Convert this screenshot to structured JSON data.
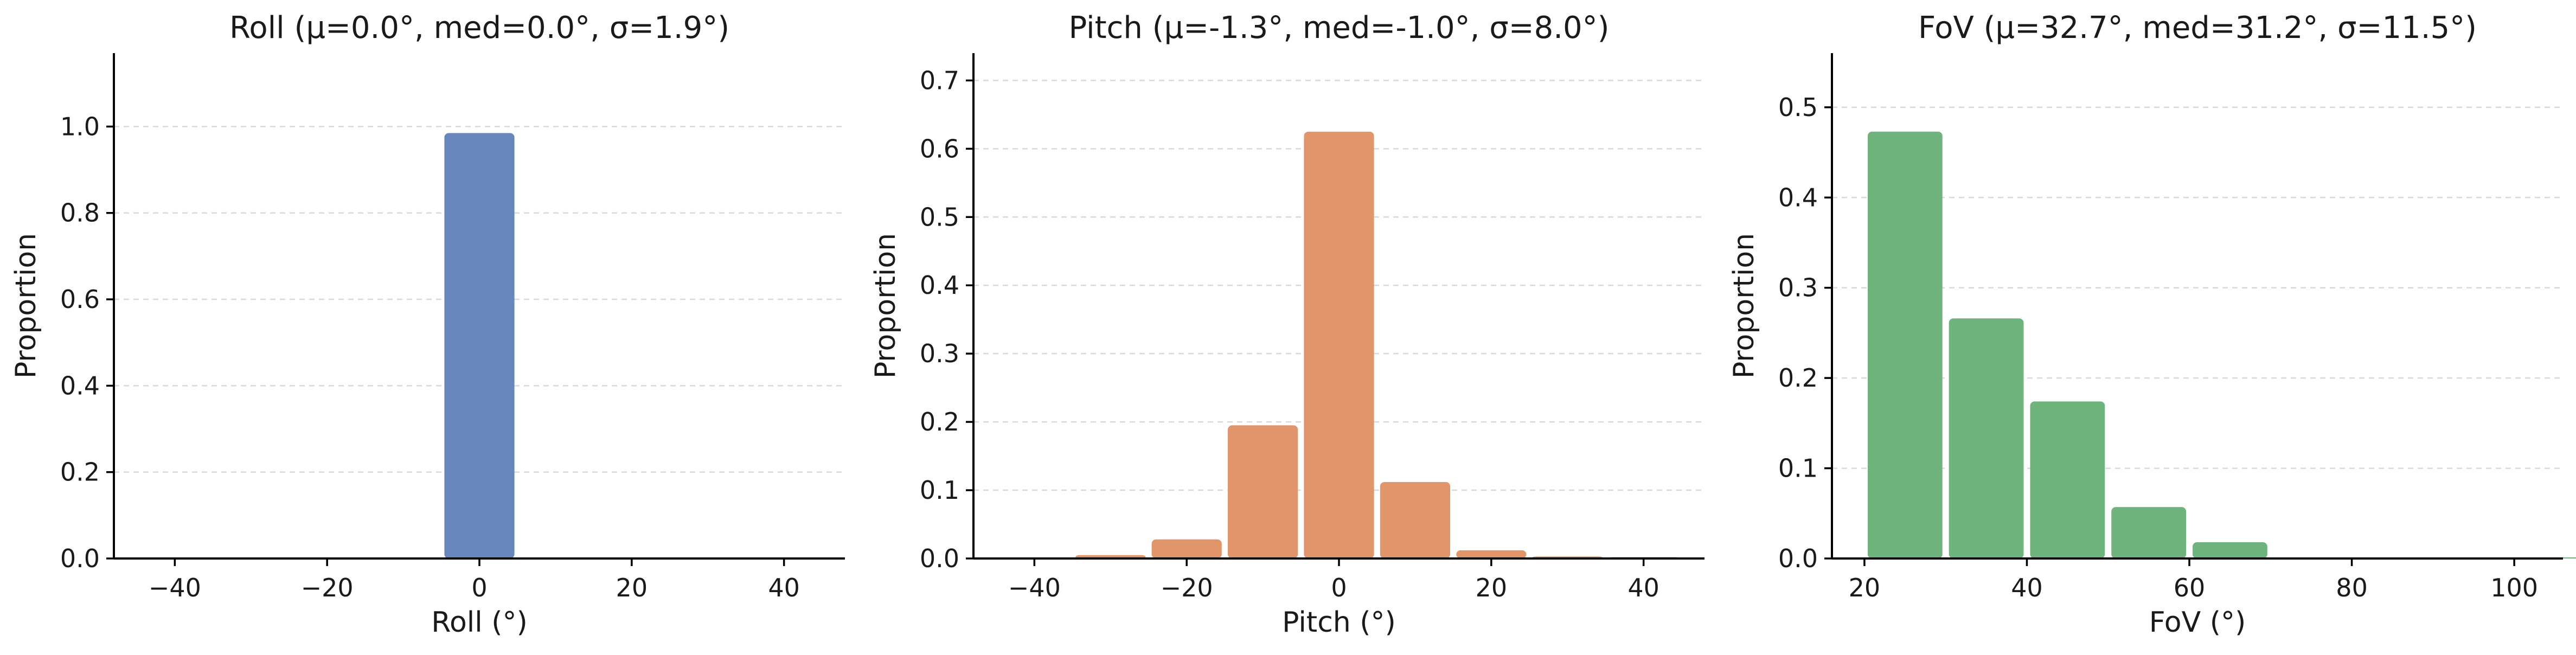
{
  "chart_data": [
    {
      "type": "bar",
      "title": "Roll  (μ=0.0°, med=0.0°, σ=1.9°)",
      "xlabel": "Roll (°)",
      "ylabel": "Proportion",
      "color": "#6787bc",
      "xlim": [
        -48,
        48
      ],
      "ylim": [
        0,
        1.17
      ],
      "xticks": [
        -40,
        -20,
        0,
        20,
        40
      ],
      "xtick_labels": [
        "−40",
        "−20",
        "0",
        "20",
        "40"
      ],
      "yticks": [
        0.0,
        0.2,
        0.4,
        0.6,
        0.8,
        1.0
      ],
      "ytick_labels": [
        "0.0",
        "0.2",
        "0.4",
        "0.6",
        "0.8",
        "1.0"
      ],
      "grid": "y",
      "bin_width": 10,
      "bins": [
        {
          "x0": -45,
          "x1": -35,
          "value": 0.001
        },
        {
          "x0": -35,
          "x1": -25,
          "value": 0.001
        },
        {
          "x0": -25,
          "x1": -15,
          "value": 0.001
        },
        {
          "x0": -15,
          "x1": -5,
          "value": 0.001
        },
        {
          "x0": -5,
          "x1": 5,
          "value": 0.985
        },
        {
          "x0": 5,
          "x1": 15,
          "value": 0.001
        },
        {
          "x0": 15,
          "x1": 25,
          "value": 0.001
        },
        {
          "x0": 25,
          "x1": 35,
          "value": 0.001
        },
        {
          "x0": 35,
          "x1": 45,
          "value": 0.001
        }
      ]
    },
    {
      "type": "bar",
      "title": "Pitch  (μ=-1.3°, med=-1.0°, σ=8.0°)",
      "xlabel": "Pitch (°)",
      "ylabel": "Proportion",
      "color": "#e1956b",
      "xlim": [
        -48,
        48
      ],
      "ylim": [
        0,
        0.74
      ],
      "xticks": [
        -40,
        -20,
        0,
        20,
        40
      ],
      "xtick_labels": [
        "−40",
        "−20",
        "0",
        "20",
        "40"
      ],
      "yticks": [
        0.0,
        0.1,
        0.2,
        0.3,
        0.4,
        0.5,
        0.6,
        0.7
      ],
      "ytick_labels": [
        "0.0",
        "0.1",
        "0.2",
        "0.3",
        "0.4",
        "0.5",
        "0.6",
        "0.7"
      ],
      "grid": "y",
      "bin_width": 10,
      "bins": [
        {
          "x0": -45,
          "x1": -35,
          "value": 0.001
        },
        {
          "x0": -35,
          "x1": -25,
          "value": 0.005
        },
        {
          "x0": -25,
          "x1": -15,
          "value": 0.028
        },
        {
          "x0": -15,
          "x1": -5,
          "value": 0.195
        },
        {
          "x0": -5,
          "x1": 5,
          "value": 0.625
        },
        {
          "x0": 5,
          "x1": 15,
          "value": 0.112
        },
        {
          "x0": 15,
          "x1": 25,
          "value": 0.012
        },
        {
          "x0": 25,
          "x1": 35,
          "value": 0.003
        },
        {
          "x0": 35,
          "x1": 45,
          "value": 0.002
        }
      ]
    },
    {
      "type": "bar",
      "title": "FoV  (μ=32.7°, med=31.2°, σ=11.5°)",
      "xlabel": "FoV (°)",
      "ylabel": "Proportion",
      "color": "#6fb47c",
      "xlim": [
        16,
        106
      ],
      "ylim": [
        0,
        0.56
      ],
      "xticks": [
        20,
        40,
        60,
        80,
        100
      ],
      "xtick_labels": [
        "20",
        "40",
        "60",
        "80",
        "100"
      ],
      "yticks": [
        0.0,
        0.1,
        0.2,
        0.3,
        0.4,
        0.5
      ],
      "ytick_labels": [
        "0.0",
        "0.1",
        "0.2",
        "0.3",
        "0.4",
        "0.5"
      ],
      "grid": "y",
      "bin_width": 10,
      "bins": [
        {
          "x0": 20,
          "x1": 30,
          "value": 0.473
        },
        {
          "x0": 30,
          "x1": 40,
          "value": 0.266
        },
        {
          "x0": 40,
          "x1": 50,
          "value": 0.174
        },
        {
          "x0": 50,
          "x1": 60,
          "value": 0.057
        },
        {
          "x0": 60,
          "x1": 70,
          "value": 0.018
        },
        {
          "x0": 70,
          "x1": 80,
          "value": 0.001
        },
        {
          "x0": 80,
          "x1": 90,
          "value": 0.001
        },
        {
          "x0": 90,
          "x1": 100,
          "value": 0.001
        },
        {
          "x0": 100,
          "x1": 110,
          "value": 0.001
        }
      ]
    }
  ]
}
